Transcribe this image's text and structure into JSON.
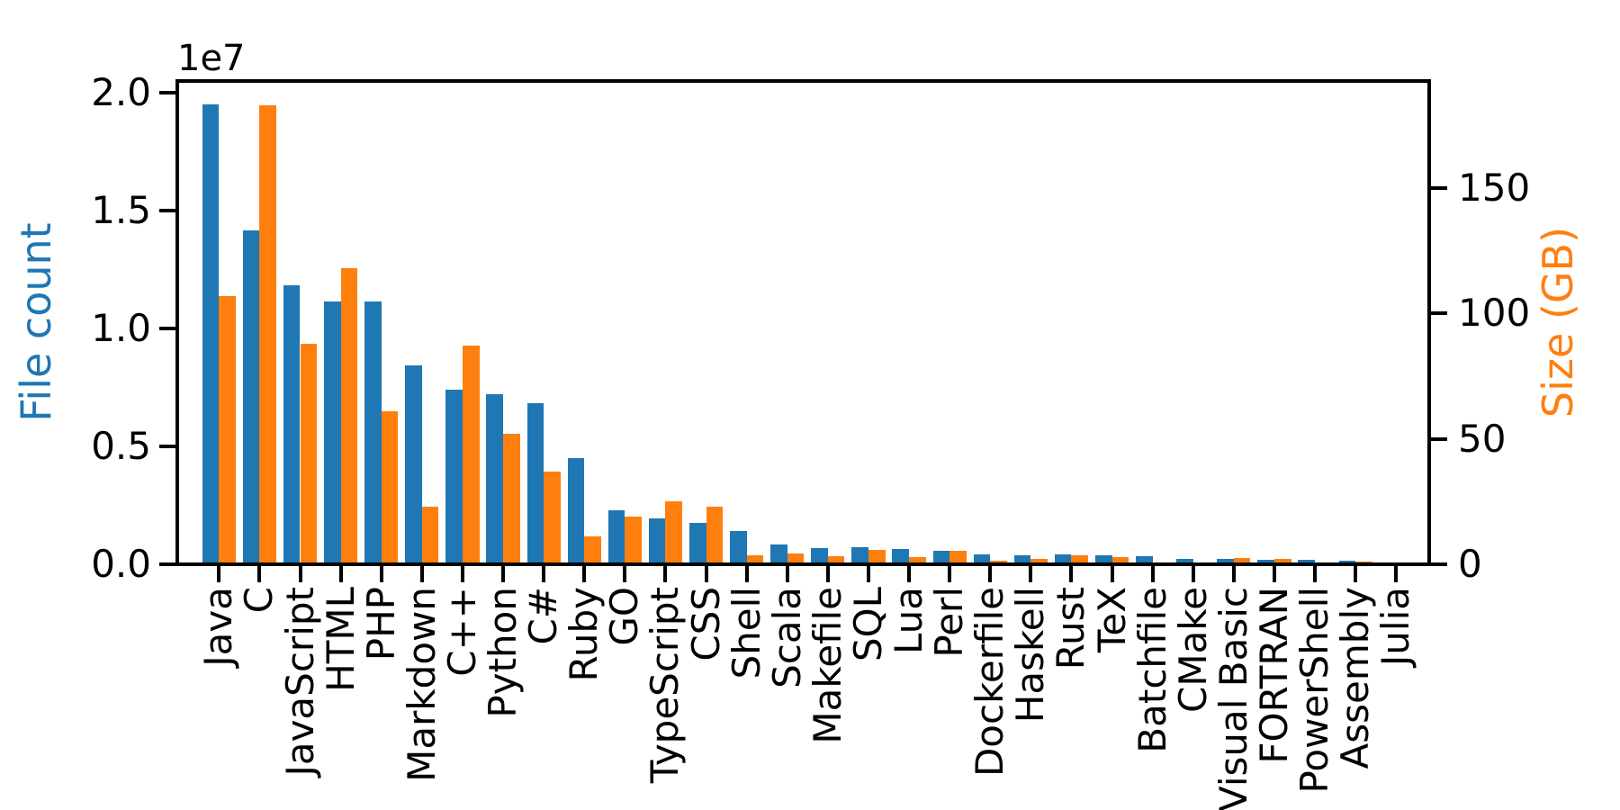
{
  "chart_data": {
    "type": "bar",
    "title": "",
    "categories": [
      "Java",
      "C",
      "JavaScript",
      "HTML",
      "PHP",
      "Markdown",
      "C++",
      "Python",
      "C#",
      "Ruby",
      "GO",
      "TypeScript",
      "CSS",
      "Shell",
      "Scala",
      "Makefile",
      "SQL",
      "Lua",
      "Perl",
      "Dockerfile",
      "Haskell",
      "Rust",
      "TeX",
      "Batchfile",
      "CMake",
      "Visual Basic",
      "FORTRAN",
      "PowerShell",
      "Assembly",
      "Julia"
    ],
    "series": [
      {
        "name": "File count",
        "axis": "left",
        "color": "#1f77b4",
        "values": [
          19500000,
          14150000,
          11840000,
          11160000,
          11150000,
          8430000,
          7420000,
          7230000,
          6820000,
          4500000,
          2300000,
          1950000,
          1740000,
          1430000,
          840000,
          690000,
          710000,
          650000,
          580000,
          410000,
          390000,
          430000,
          370000,
          330000,
          240000,
          220000,
          180000,
          200000,
          140000,
          80000
        ]
      },
      {
        "name": "Size (GB)",
        "axis": "right",
        "color": "#ff7f0e",
        "values": [
          107,
          183,
          88,
          118,
          61,
          23,
          87,
          52,
          37,
          11,
          19,
          25,
          23,
          3.5,
          4.3,
          3.2,
          5.8,
          2.9,
          5.5,
          1.3,
          2.3,
          3.5,
          2.9,
          0.5,
          0.3,
          2.6,
          2.3,
          0.5,
          1.1,
          0.3
        ]
      }
    ],
    "left_axis": {
      "label": "File count",
      "color": "#1f77b4",
      "offset_text": "1e7",
      "tick_labels": [
        "0.0",
        "0.5",
        "1.0",
        "1.5",
        "2.0"
      ],
      "tick_values": [
        0,
        5000000,
        10000000,
        15000000,
        20000000
      ],
      "max": 20500000
    },
    "right_axis": {
      "label": "Size (GB)",
      "color": "#ff7f0e",
      "tick_labels": [
        "0",
        "50",
        "100",
        "150"
      ],
      "tick_values": [
        0,
        50,
        100,
        150
      ],
      "max": 192.5
    },
    "x_axis": {
      "tick_rotation": 90
    },
    "axis_color": "#000000",
    "grid": false,
    "legend": "none"
  }
}
